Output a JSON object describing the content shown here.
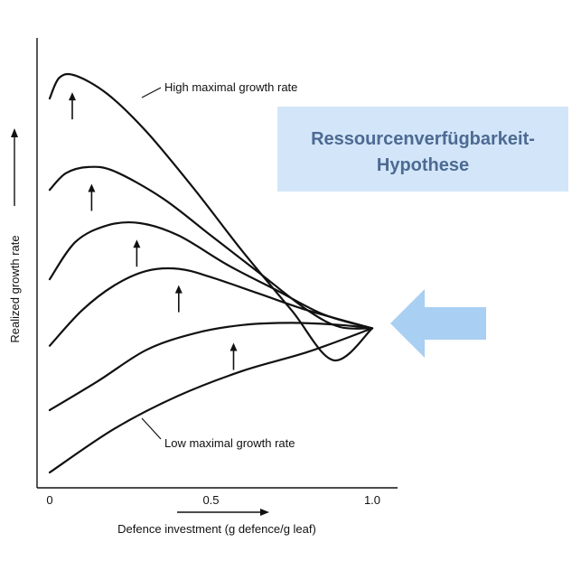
{
  "chart_data": {
    "type": "line",
    "title": "",
    "xlabel": "Defence investment (g defence/g leaf)",
    "ylabel": "Realized growth rate",
    "xlim": [
      0,
      1.0
    ],
    "ylim": [
      0,
      1.0
    ],
    "x_ticks": [
      {
        "value": 0,
        "label": "0"
      },
      {
        "value": 0.5,
        "label": "0.5"
      },
      {
        "value": 1.0,
        "label": "1.0"
      }
    ],
    "y_ticks": [],
    "grid": false,
    "legend": "none",
    "series": [
      {
        "x": [
          0,
          0.03,
          0.08,
          0.18,
          0.3,
          0.45,
          0.6,
          0.75,
          0.88,
          1.0
        ],
        "y": [
          0.9,
          0.95,
          0.955,
          0.91,
          0.82,
          0.68,
          0.53,
          0.39,
          0.27,
          0.347
        ]
      },
      {
        "x": [
          0,
          0.05,
          0.12,
          0.2,
          0.35,
          0.5,
          0.65,
          0.8,
          0.9,
          1.0
        ],
        "y": [
          0.68,
          0.72,
          0.735,
          0.725,
          0.66,
          0.57,
          0.48,
          0.39,
          0.35,
          0.347
        ]
      },
      {
        "x": [
          0,
          0.08,
          0.18,
          0.28,
          0.4,
          0.55,
          0.7,
          0.85,
          1.0
        ],
        "y": [
          0.465,
          0.555,
          0.595,
          0.6,
          0.57,
          0.5,
          0.44,
          0.38,
          0.347
        ]
      },
      {
        "x": [
          0,
          0.1,
          0.2,
          0.3,
          0.4,
          0.5,
          0.65,
          0.8,
          1.0
        ],
        "y": [
          0.305,
          0.39,
          0.45,
          0.485,
          0.49,
          0.47,
          0.43,
          0.39,
          0.347
        ]
      },
      {
        "x": [
          0,
          0.15,
          0.3,
          0.45,
          0.6,
          0.75,
          0.9,
          1.0
        ],
        "y": [
          0.15,
          0.22,
          0.295,
          0.335,
          0.355,
          0.36,
          0.355,
          0.347
        ]
      },
      {
        "x": [
          0,
          0.2,
          0.4,
          0.6,
          0.8,
          1.0
        ],
        "y": [
          0.0,
          0.105,
          0.185,
          0.245,
          0.29,
          0.347
        ]
      }
    ],
    "annotations": [
      {
        "text": "High maximal growth rate",
        "target_series": 0,
        "x": 0.33,
        "y": 0.85
      },
      {
        "text": "Low maximal growth rate",
        "target_series": 5,
        "x": 0.33,
        "y": 0.05
      }
    ],
    "optimum_arrows": [
      {
        "series": 0,
        "x": 0.07
      },
      {
        "series": 1,
        "x": 0.13
      },
      {
        "series": 2,
        "x": 0.27
      },
      {
        "series": 3,
        "x": 0.4
      },
      {
        "series": 4,
        "x": 0.57
      }
    ]
  },
  "callout": {
    "line1": "Ressourcenverfügbarkeit-",
    "line2": "Hypothese",
    "color": "#4d6a93",
    "background": "#d3e6f9"
  },
  "pointer_arrow": {
    "color": "#a9cff2",
    "direction": "left"
  }
}
